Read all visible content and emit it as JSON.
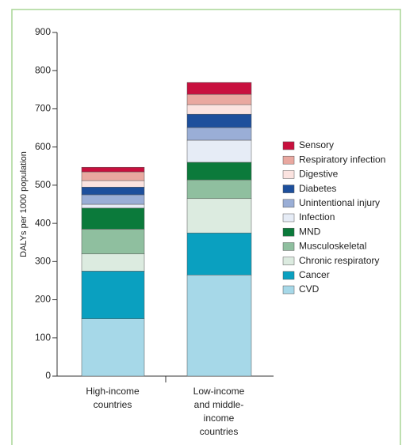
{
  "chart_data": {
    "type": "stacked_bar",
    "y_label": "DALYs per 1000 population",
    "categories": [
      "High-income countries",
      "Low-income and middle-income countries"
    ],
    "series": [
      {
        "name": "CVD",
        "color": "#a6d8e8",
        "values": [
          150,
          265
        ]
      },
      {
        "name": "Cancer",
        "color": "#0aa0c0",
        "values": [
          125,
          110
        ]
      },
      {
        "name": "Chronic respiratory",
        "color": "#dcebe0",
        "values": [
          45,
          90
        ]
      },
      {
        "name": "Musculoskeletal",
        "color": "#8fbf9f",
        "values": [
          65,
          49
        ]
      },
      {
        "name": "MND",
        "color": "#0b7a3b",
        "values": [
          55,
          46
        ]
      },
      {
        "name": "Infection",
        "color": "#e6ecf6",
        "values": [
          10,
          58
        ]
      },
      {
        "name": "Unintentional injury",
        "color": "#9aaed6",
        "values": [
          25,
          33
        ]
      },
      {
        "name": "Diabetes",
        "color": "#1d4f9c",
        "values": [
          20,
          35
        ]
      },
      {
        "name": "Digestive",
        "color": "#fbe3e0",
        "values": [
          17,
          25
        ]
      },
      {
        "name": "Respiratory infection",
        "color": "#e9a8a0",
        "values": [
          23,
          27
        ]
      },
      {
        "name": "Sensory",
        "color": "#c8103e",
        "values": [
          12,
          31
        ]
      }
    ],
    "ylim": [
      0,
      900
    ],
    "yticks": [
      0,
      100,
      200,
      300,
      400,
      500,
      600,
      700,
      800,
      900
    ]
  }
}
